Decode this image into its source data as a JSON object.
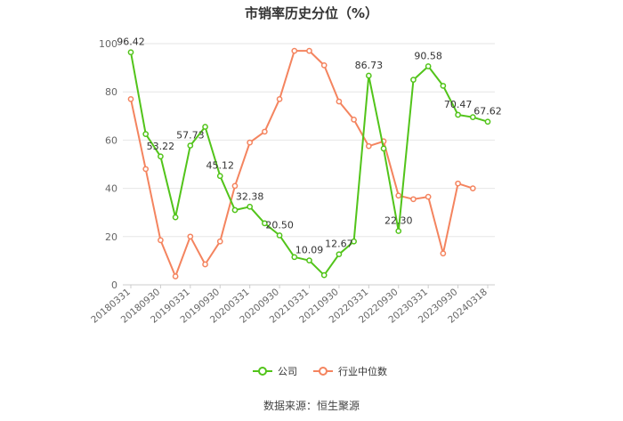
{
  "chart_data": {
    "type": "line",
    "title": "市销率历史分位（%）",
    "ylim": [
      0,
      100
    ],
    "yticks": [
      0,
      20,
      40,
      60,
      80,
      100
    ],
    "grid": true,
    "legend_position": "bottom",
    "x_tick_labels": [
      "20180331",
      "20180930",
      "20190331",
      "20190930",
      "20200331",
      "20200930",
      "20210331",
      "20210930",
      "20220331",
      "20220930",
      "20230331",
      "20230930",
      "20240318"
    ],
    "series": [
      {
        "name": "公司",
        "color": "#52c41a",
        "values": [
          96.42,
          62.5,
          53.22,
          28.0,
          57.73,
          65.5,
          45.12,
          31.0,
          32.38,
          25.5,
          20.5,
          11.5,
          10.09,
          4.0,
          12.67,
          18.0,
          86.73,
          56.5,
          22.3,
          85.0,
          90.58,
          82.5,
          70.47,
          69.5,
          67.62
        ],
        "labels": {
          "0": "96.42",
          "2": "53.22",
          "4": "57.73",
          "6": "45.12",
          "8": "32.38",
          "10": "20.50",
          "12": "10.09",
          "14": "12.67",
          "16": "86.73",
          "18": "22.30",
          "20": "90.58",
          "22": "70.47",
          "24": "67.62"
        }
      },
      {
        "name": "行业中位数",
        "color": "#f4845f",
        "values": [
          77.0,
          48.0,
          18.5,
          3.5,
          20.0,
          8.5,
          18.0,
          41.0,
          59.0,
          63.5,
          77.0,
          97.0,
          97.0,
          91.0,
          76.0,
          68.5,
          57.5,
          59.5,
          37.0,
          35.5,
          36.5,
          13.0,
          42.0,
          40.0,
          null
        ]
      }
    ]
  },
  "source_note": "数据来源：恒生聚源"
}
